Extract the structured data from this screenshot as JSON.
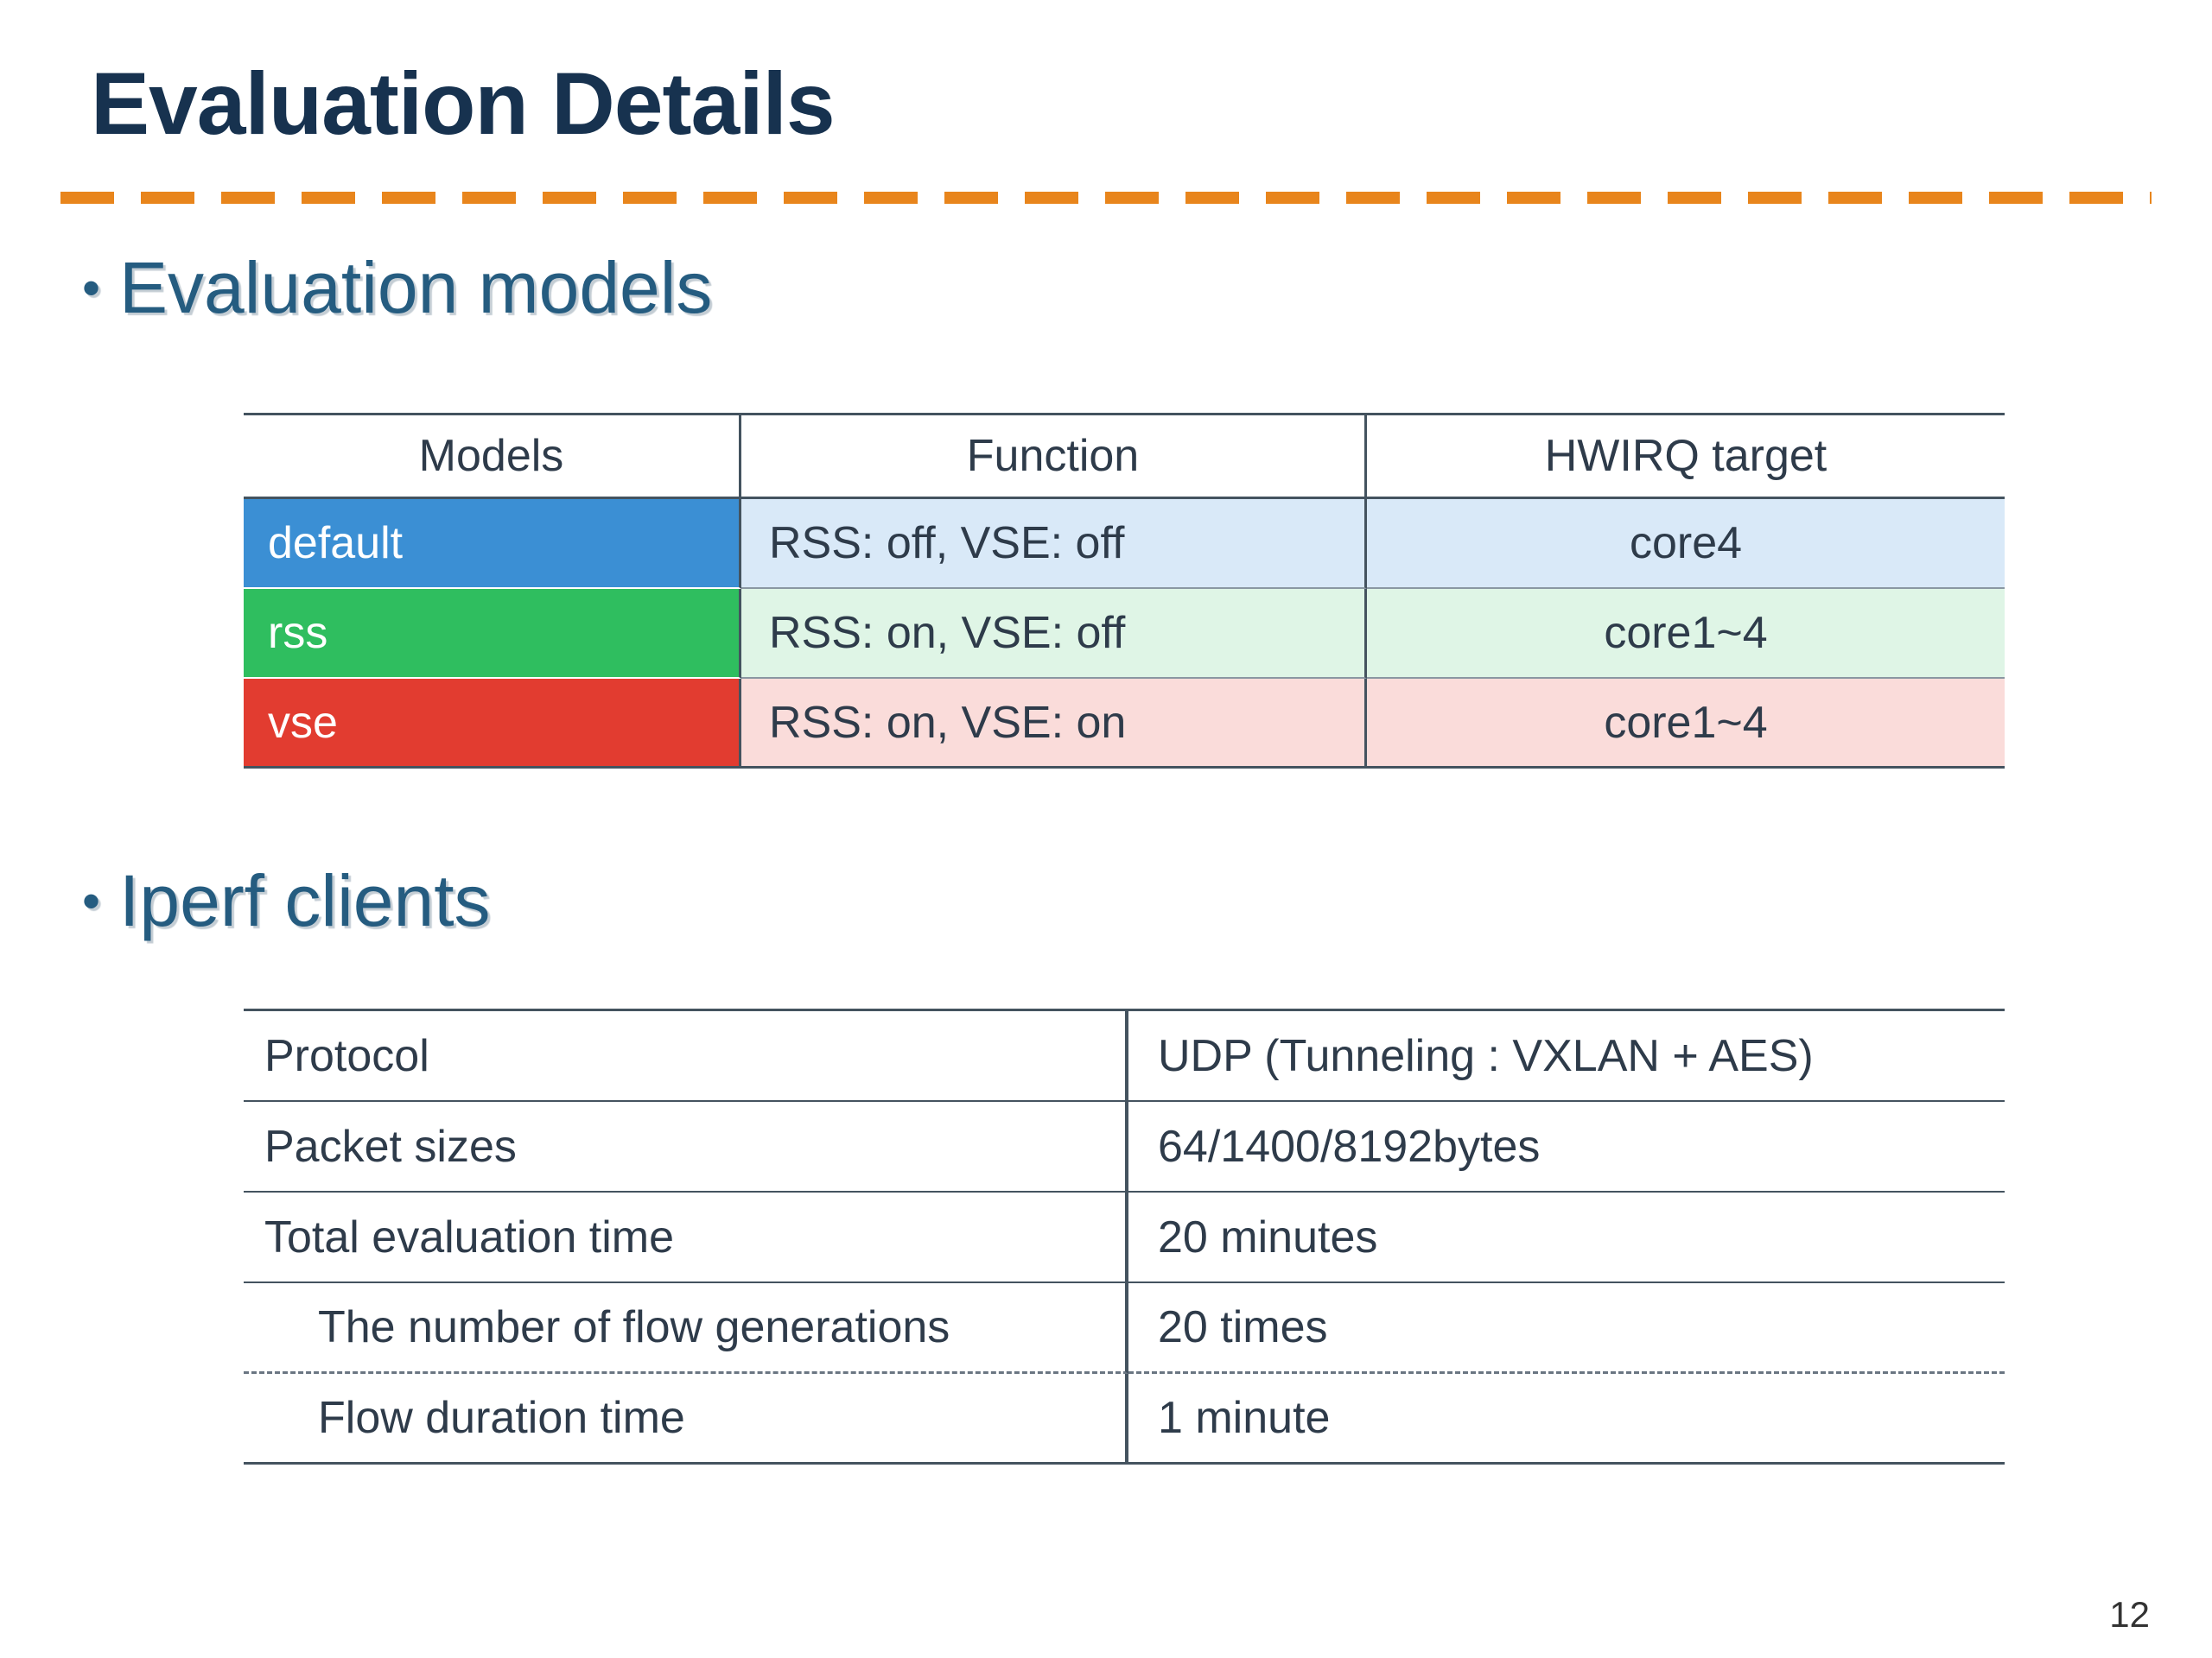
{
  "slide": {
    "title": "Evaluation Details",
    "page_number": "12"
  },
  "glyphs": {
    "bullet": "•"
  },
  "colors": {
    "accent_orange": "#e8851c",
    "title_navy": "#17324f",
    "heading_blue": "#255c80"
  },
  "sections": {
    "models": {
      "heading": "Evaluation models",
      "table": {
        "headers": [
          "Models",
          "Function",
          "HWIRQ target"
        ],
        "rows": [
          {
            "model": "default",
            "function": "RSS: off, VSE: off",
            "target": "core4",
            "color": "#3b8fd4",
            "tint": "#d9e9f8"
          },
          {
            "model": "rss",
            "function": "RSS: on, VSE: off",
            "target": "core1~4",
            "color": "#2fbe5f",
            "tint": "#dff5e6"
          },
          {
            "model": "vse",
            "function": "RSS: on, VSE: on",
            "target": "core1~4",
            "color": "#e23c30",
            "tint": "#fadcda"
          }
        ]
      }
    },
    "iperf": {
      "heading": "Iperf clients",
      "table": {
        "rows": [
          {
            "label": "Protocol",
            "value": "UDP (Tunneling : VXLAN + AES)",
            "indent": false
          },
          {
            "label": "Packet sizes",
            "value": "64/1400/8192bytes",
            "indent": false
          },
          {
            "label": "Total evaluation time",
            "value": "20 minutes",
            "indent": false
          },
          {
            "label": "The number of flow generations",
            "value": "20 times",
            "indent": true
          },
          {
            "label": "Flow duration time",
            "value": "1 minute",
            "indent": true
          }
        ]
      }
    }
  }
}
